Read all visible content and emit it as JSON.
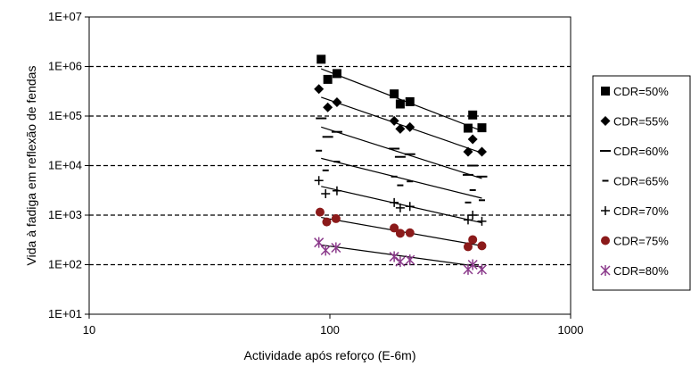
{
  "chart_data": {
    "type": "scatter",
    "title": "",
    "xlabel": "Actividade após reforço (E-6m)",
    "ylabel": "Vida à fadiga em reflexão de fendas",
    "x_scale": "log",
    "y_scale": "log",
    "xlim": [
      10,
      1000
    ],
    "ylim": [
      10,
      10000000
    ],
    "x_ticks": [
      {
        "value": 10,
        "label": "10"
      },
      {
        "value": 100,
        "label": "100"
      },
      {
        "value": 1000,
        "label": "1000"
      }
    ],
    "y_ticks": [
      {
        "value": 10,
        "label": "1E+01"
      },
      {
        "value": 100,
        "label": "1E+02"
      },
      {
        "value": 1000,
        "label": "1E+03"
      },
      {
        "value": 10000,
        "label": "1E+04"
      },
      {
        "value": 100000,
        "label": "1E+05"
      },
      {
        "value": 1000000,
        "label": "1E+06"
      },
      {
        "value": 10000000,
        "label": "1E+07"
      }
    ],
    "grid": "horizontal dashed at major y ticks",
    "legend_position": "right",
    "series": [
      {
        "name": "CDR=50%",
        "marker": "square",
        "color": "#000000",
        "points": [
          [
            92,
            1400000
          ],
          [
            98,
            550000
          ],
          [
            107,
            720000
          ],
          [
            185,
            280000
          ],
          [
            196,
            175000
          ],
          [
            215,
            195000
          ],
          [
            375,
            57000
          ],
          [
            392,
            105000
          ],
          [
            428,
            58000
          ]
        ],
        "trend": [
          [
            92,
            900000
          ],
          [
            428,
            50000
          ]
        ]
      },
      {
        "name": "CDR=55%",
        "marker": "diamond",
        "color": "#000000",
        "points": [
          [
            90,
            350000
          ],
          [
            98,
            150000
          ],
          [
            107,
            190000
          ],
          [
            185,
            80000
          ],
          [
            196,
            55000
          ],
          [
            215,
            60000
          ],
          [
            375,
            19000
          ],
          [
            392,
            34000
          ],
          [
            428,
            19000
          ]
        ],
        "trend": [
          [
            92,
            240000
          ],
          [
            428,
            18000
          ]
        ]
      },
      {
        "name": "CDR=60%",
        "marker": "dash",
        "color": "#000000",
        "points": [
          [
            92,
            90000
          ],
          [
            98,
            38000
          ],
          [
            107,
            48000
          ],
          [
            185,
            22000
          ],
          [
            196,
            15000
          ],
          [
            215,
            17000
          ],
          [
            375,
            6500
          ],
          [
            392,
            10000
          ],
          [
            428,
            6000
          ]
        ],
        "trend": [
          [
            92,
            60000
          ],
          [
            428,
            5500
          ]
        ]
      },
      {
        "name": "CDR=65%",
        "marker": "short-dash",
        "color": "#000000",
        "points": [
          [
            90,
            20000
          ],
          [
            96,
            8000
          ],
          [
            107,
            12000
          ],
          [
            185,
            6000
          ],
          [
            196,
            4000
          ],
          [
            215,
            4800
          ],
          [
            375,
            1800
          ],
          [
            392,
            3200
          ],
          [
            428,
            2000
          ]
        ],
        "trend": [
          [
            92,
            14000
          ],
          [
            428,
            2200
          ]
        ]
      },
      {
        "name": "CDR=70%",
        "marker": "plus",
        "color": "#000000",
        "points": [
          [
            90,
            5000
          ],
          [
            96,
            2700
          ],
          [
            107,
            3100
          ],
          [
            185,
            1800
          ],
          [
            196,
            1400
          ],
          [
            215,
            1500
          ],
          [
            375,
            800
          ],
          [
            392,
            1000
          ],
          [
            428,
            750
          ]
        ],
        "trend": [
          [
            92,
            3800
          ],
          [
            428,
            700
          ]
        ]
      },
      {
        "name": "CDR=75%",
        "marker": "circle",
        "color": "#8b1a1a",
        "points": [
          [
            91,
            1150
          ],
          [
            97,
            730
          ],
          [
            106,
            850
          ],
          [
            185,
            550
          ],
          [
            196,
            430
          ],
          [
            215,
            440
          ],
          [
            375,
            230
          ],
          [
            392,
            320
          ],
          [
            428,
            240
          ]
        ],
        "trend": [
          [
            92,
            900
          ],
          [
            428,
            240
          ]
        ]
      },
      {
        "name": "CDR=80%",
        "marker": "star",
        "color": "#8b3a8b",
        "points": [
          [
            90,
            280
          ],
          [
            96,
            195
          ],
          [
            106,
            220
          ],
          [
            185,
            145
          ],
          [
            196,
            115
          ],
          [
            215,
            125
          ],
          [
            375,
            80
          ],
          [
            392,
            100
          ],
          [
            428,
            80
          ]
        ],
        "trend": [
          [
            92,
            250
          ],
          [
            428,
            90
          ]
        ]
      }
    ]
  }
}
